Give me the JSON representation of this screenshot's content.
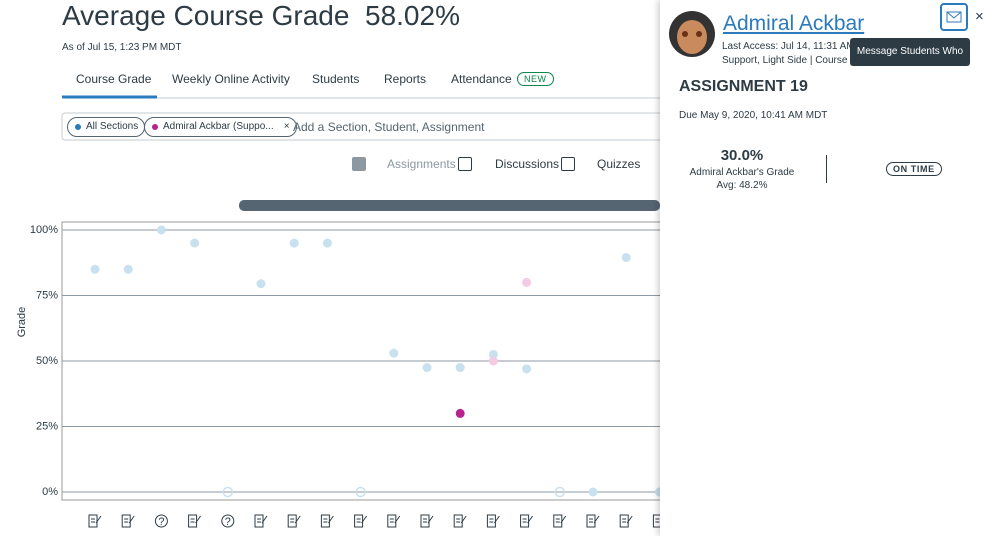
{
  "header": {
    "title": "Average Course Grade",
    "grade": "58.02%",
    "as_of": "As of Jul 15, 1:23 PM MDT"
  },
  "tabs": [
    "Course Grade",
    "Weekly Online Activity",
    "Students",
    "Reports",
    "Attendance"
  ],
  "tab_badge": "NEW",
  "filters": {
    "pills": [
      "All Sections",
      "Admiral Ackbar (Suppo..."
    ],
    "remove": "×",
    "placeholder": "Add a Section, Student, Assignment"
  },
  "toggles": [
    "Assignments",
    "Discussions",
    "Quizzes"
  ],
  "chart_data": {
    "type": "scatter",
    "ylabel": "Grade",
    "categories": [
      null,
      null,
      null,
      null,
      null,
      null,
      null,
      null,
      null,
      null,
      null,
      null,
      null,
      null,
      null,
      null,
      null,
      null
    ],
    "ylim": [
      0,
      100
    ],
    "yticks": [
      {
        "value": 0,
        "label": "0%"
      },
      {
        "value": 25,
        "label": "25%"
      },
      {
        "value": 50,
        "label": "50%"
      },
      {
        "value": 75,
        "label": "75%"
      },
      {
        "value": 100,
        "label": "100%"
      }
    ],
    "grid": true,
    "series": [
      {
        "color": "#c9e0ee",
        "style": "filled",
        "values": [
          85,
          85,
          100,
          95,
          null,
          79.5,
          95,
          95,
          null,
          53,
          47.5,
          47.5,
          52.5,
          47,
          null,
          0,
          89.5,
          0
        ]
      },
      {
        "color": "#f3cbe3",
        "style": "filled",
        "values": [
          null,
          null,
          null,
          null,
          null,
          null,
          null,
          null,
          null,
          null,
          null,
          null,
          50,
          80,
          null,
          null,
          null,
          null
        ]
      },
      {
        "color": "#b8228f",
        "style": "filled",
        "values": [
          null,
          null,
          null,
          null,
          null,
          null,
          null,
          null,
          null,
          null,
          null,
          30,
          null,
          null,
          null,
          null,
          null,
          null
        ]
      },
      {
        "color": "#c9e0ee",
        "style": "hollow",
        "values": [
          null,
          null,
          null,
          null,
          0,
          null,
          null,
          null,
          0,
          null,
          null,
          null,
          null,
          null,
          0,
          null,
          null,
          null
        ]
      }
    ]
  },
  "panel": {
    "name": "Admiral Ackbar",
    "last_access": "Last Access: Jul 14, 11:31 AM",
    "section": "Support, Light Side | Course G",
    "tooltip": "Message Students Who",
    "close": "×",
    "assignment": "ASSIGNMENT 19",
    "due": "Due May 9, 2020, 10:41 AM MDT",
    "score": "30.0%",
    "score_label": "Admiral Ackbar's Grade",
    "avg": "Avg: 48.2%",
    "status": "ON TIME"
  }
}
